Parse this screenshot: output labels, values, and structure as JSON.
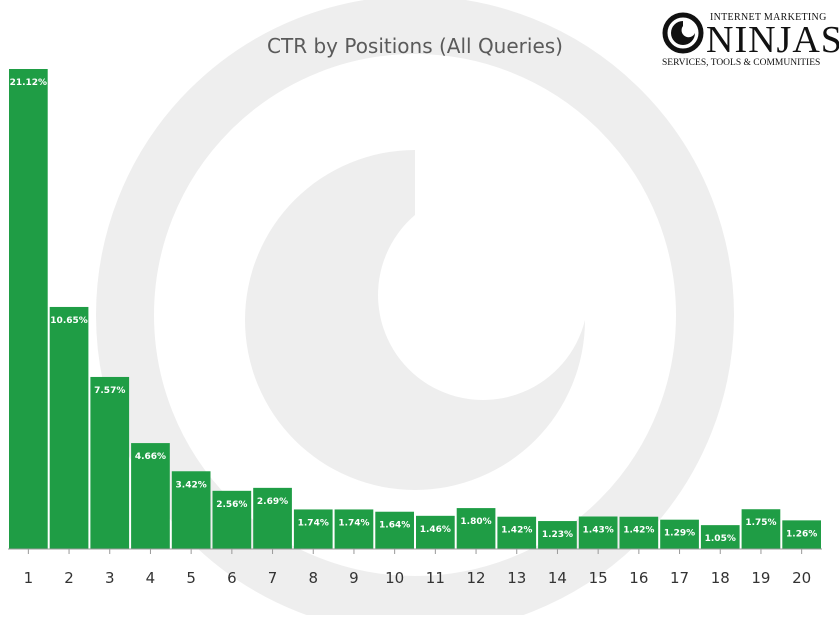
{
  "chart_data": {
    "type": "bar",
    "title": "CTR by Positions (All Queries)",
    "xlabel": "",
    "ylabel": "",
    "categories": [
      "1",
      "2",
      "3",
      "4",
      "5",
      "6",
      "7",
      "8",
      "9",
      "10",
      "11",
      "12",
      "13",
      "14",
      "15",
      "16",
      "17",
      "18",
      "19",
      "20"
    ],
    "values": [
      21.12,
      10.65,
      7.57,
      4.66,
      3.42,
      2.56,
      2.69,
      1.74,
      1.74,
      1.64,
      1.46,
      1.8,
      1.42,
      1.23,
      1.43,
      1.42,
      1.29,
      1.05,
      1.75,
      1.26
    ],
    "data_labels": [
      "21.12%",
      "10.65%",
      "7.57%",
      "4.66%",
      "3.42%",
      "2.56%",
      "2.69%",
      "1.74%",
      "1.74%",
      "1.64%",
      "1.46%",
      "1.80%",
      "1.42%",
      "1.23%",
      "1.43%",
      "1.42%",
      "1.29%",
      "1.05%",
      "1.75%",
      "1.26%"
    ],
    "ylim": [
      0,
      21.12
    ],
    "grid": false,
    "legend": "none",
    "colors": {
      "bar": "#1f9d45",
      "bar_label": "#ffffff",
      "axis": "#999999",
      "tick_label": "#333333",
      "watermark": "#eeeeee"
    }
  },
  "logo": {
    "top_text": "INTERNET MARKETING",
    "main_text": "NINJAS",
    "sub_text": "SERVICES, TOOLS & COMMUNITIES",
    "icon": "swirl-logo-icon"
  }
}
